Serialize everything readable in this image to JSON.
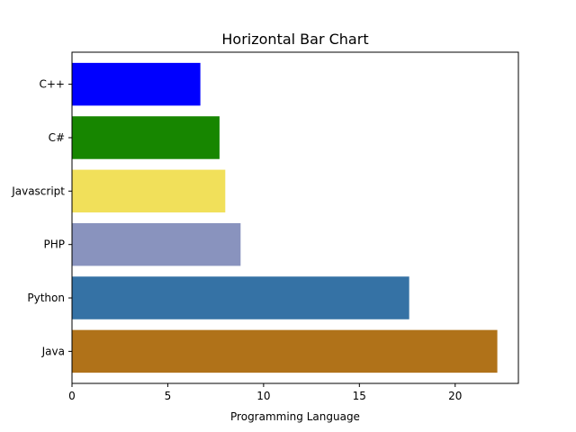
{
  "chart_data": {
    "type": "bar",
    "orientation": "horizontal",
    "title": "Horizontal Bar Chart",
    "xlabel": "Programming Language",
    "ylabel": "",
    "categories": [
      "Java",
      "Python",
      "PHP",
      "Javascript",
      "C#",
      "C++"
    ],
    "values": [
      22.2,
      17.6,
      8.8,
      8.0,
      7.7,
      6.7
    ],
    "colors": [
      "#b07219",
      "#3572a5",
      "#8993be",
      "#f1e05a",
      "#178600",
      "#0000ff"
    ],
    "xlim": [
      0,
      23.3
    ],
    "xticks": [
      0,
      5,
      10,
      15,
      20
    ],
    "grid": false,
    "legend": "none"
  }
}
